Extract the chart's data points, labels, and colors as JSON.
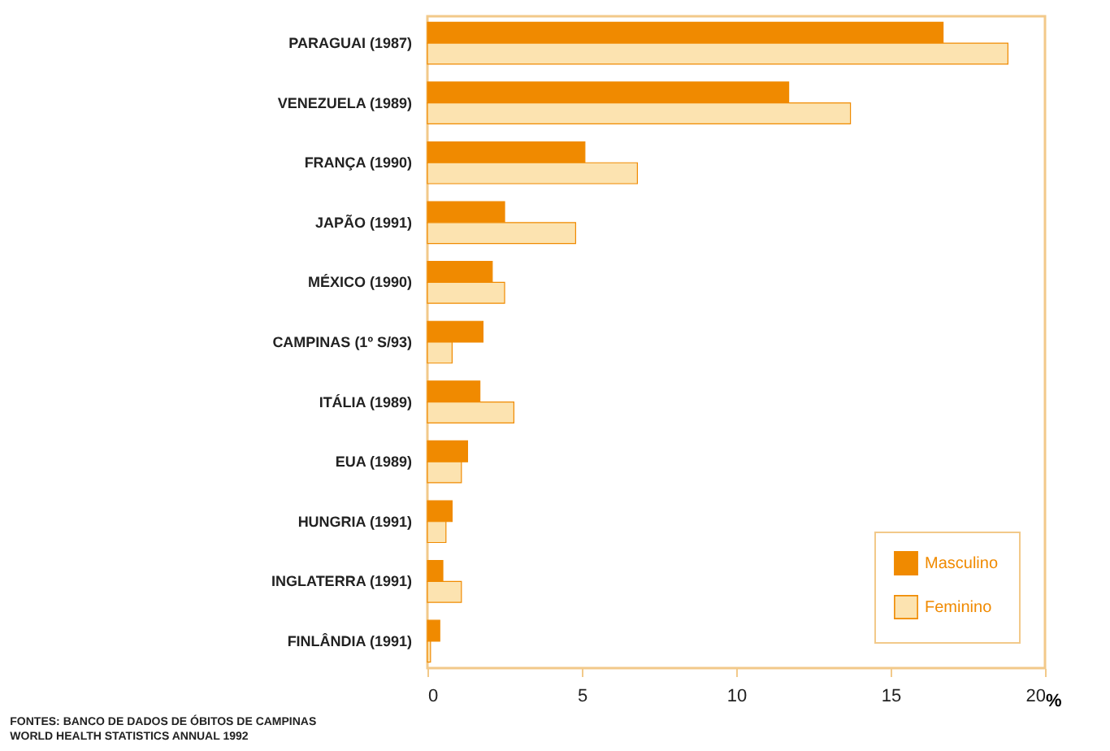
{
  "chart_data": {
    "type": "bar",
    "orientation": "horizontal",
    "xlabel": "%",
    "categories": [
      "PARAGUAI (1987)",
      "VENEZUELA (1989)",
      "FRANÇA (1990)",
      "JAPÃO   (1991)",
      "MÉXICO (1990)",
      "CAMPINAS (1º S/93)",
      "ITÁLIA (1989)",
      "EUA    (1989)",
      "HUNGRIA  (1991)",
      "INGLATERRA (1991)",
      "FINLÂNDIA (1991)"
    ],
    "series": [
      {
        "name": "Masculino",
        "color": "#f08a00",
        "values": [
          16.7,
          11.7,
          5.1,
          2.5,
          2.1,
          1.8,
          1.7,
          1.3,
          0.8,
          0.5,
          0.4
        ]
      },
      {
        "name": "Feminino",
        "color": "#fce3b0",
        "values": [
          18.8,
          13.7,
          6.8,
          4.8,
          2.5,
          0.8,
          2.8,
          1.1,
          0.6,
          1.1,
          0.1
        ]
      }
    ],
    "xlim": [
      0,
      20
    ],
    "xticks": [
      0,
      5,
      10,
      15,
      20
    ],
    "grid": false,
    "legend": "bottom right",
    "annotations": [
      "FONTES: BANCO DE DADOS DE ÓBITOS DE CAMPINAS",
      "WORLD HEALTH STATISTICS ANNUAL 1992"
    ]
  }
}
